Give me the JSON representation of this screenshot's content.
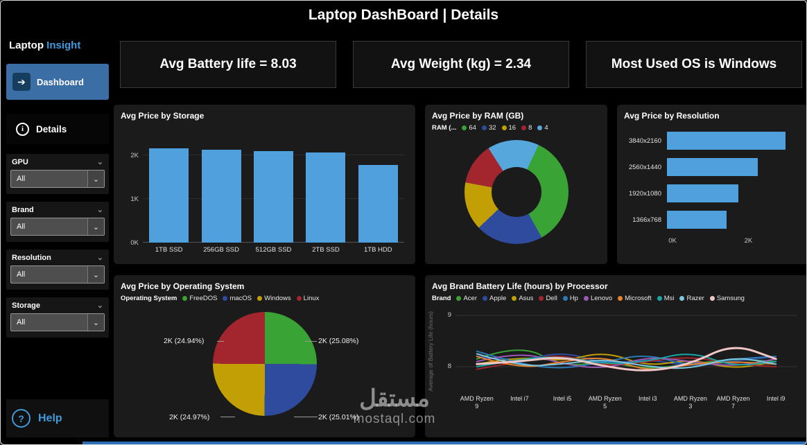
{
  "header": {
    "title": "Laptop DashBoard | Details"
  },
  "sidebar": {
    "brand_primary": "Laptop",
    "brand_accent": "Insight",
    "dashboard_label": "Dashboard",
    "details_label": "Details",
    "filters": [
      {
        "label": "GPU",
        "value": "All"
      },
      {
        "label": "Brand",
        "value": "All"
      },
      {
        "label": "Resolution",
        "value": "All"
      },
      {
        "label": "Storage",
        "value": "All"
      }
    ],
    "help_label": "Help",
    "icons": {
      "dashboard": "arrow-right-icon",
      "details": "info-icon",
      "help": "question-icon"
    }
  },
  "kpis": [
    {
      "text": "Avg Battery life = 8.03"
    },
    {
      "text": "Avg Weight (kg) = 2.34"
    },
    {
      "text": "Most Used OS is Windows"
    }
  ],
  "watermark": {
    "arabic": "مستقل",
    "domain": "mostaql.com"
  },
  "colors": {
    "accent_blue": "#3f9bdc",
    "bar_blue": "#4FA0DC",
    "dashboard_button": "#3a6ea5"
  },
  "chart_data": [
    {
      "type": "bar",
      "title": "Avg Price by Storage",
      "categories": [
        "1TB SSD",
        "256GB SSD",
        "512GB SSD",
        "2TB SSD",
        "1TB HDD"
      ],
      "values": [
        2.15,
        2.12,
        2.09,
        2.05,
        1.78
      ],
      "unit": "K",
      "ylim": [
        0,
        2.5
      ],
      "yticks": [
        {
          "v": 0,
          "label": "0K"
        },
        {
          "v": 1,
          "label": "1K"
        },
        {
          "v": 2,
          "label": "2K"
        }
      ],
      "bar_color": "#4FA0DC"
    },
    {
      "type": "donut",
      "title": "Avg Price by RAM (GB)",
      "legend_title": "RAM (...",
      "categories": [
        "64",
        "32",
        "16",
        "8",
        "4"
      ],
      "values": [
        35,
        21,
        15,
        13,
        16
      ],
      "colors": [
        "#3AA335",
        "#2E4B9E",
        "#C2A005",
        "#A3262E",
        "#56A7DC"
      ],
      "start_angle": 25,
      "note": "values are estimated visual proportions (%), no data labels shown"
    },
    {
      "type": "bar-horizontal",
      "title": "Avg Price by Resolution",
      "categories": [
        "3840x2160",
        "2560x1440",
        "1920x1080",
        "1366x768"
      ],
      "values": [
        3.0,
        2.3,
        1.8,
        1.5
      ],
      "unit": "K",
      "xlim": [
        0,
        3.4
      ],
      "xticks": [
        {
          "v": 0,
          "label": "0K"
        },
        {
          "v": 2,
          "label": "2K"
        }
      ],
      "bar_color": "#4FA0DC"
    },
    {
      "type": "pie",
      "title": "Avg Price by Operating System",
      "legend_title": "Operating System",
      "series": [
        {
          "name": "FreeDOS",
          "color": "#3AA335",
          "value": 25.08,
          "label": "2K (25.08%)",
          "pos": "pl-tr"
        },
        {
          "name": "macOS",
          "color": "#2E4B9E",
          "value": 25.01,
          "label": "2K (25.01%)",
          "pos": "pl-br"
        },
        {
          "name": "Windows",
          "color": "#C2A005",
          "value": 24.97,
          "label": "2K (24.97%)",
          "pos": "pl-bl"
        },
        {
          "name": "Linux",
          "color": "#A3262E",
          "value": 24.94,
          "label": "2K (24.94%)",
          "pos": "pl-tl"
        }
      ]
    },
    {
      "type": "line",
      "title": "Avg Brand Battery Life (hours) by Processor",
      "legend_title": "Brand",
      "ylabel": "Average of Battery Life (hours)",
      "categories": [
        "AMD Ryzen 9",
        "Intel i7",
        "Intel i5",
        "AMD Ryzen 5",
        "Intel i3",
        "AMD Ryzen 3",
        "AMD Ryzen 7",
        "Intel i9"
      ],
      "ylim": [
        7.5,
        9.15
      ],
      "yticks": [
        {
          "v": 8,
          "label": "8"
        },
        {
          "v": 9,
          "label": "9"
        }
      ],
      "series": [
        {
          "name": "Acer",
          "color": "#3AA335",
          "values": [
            8.15,
            8.45,
            8.0,
            8.1,
            7.95,
            8.05,
            8.15,
            8.1
          ]
        },
        {
          "name": "Apple",
          "color": "#2E4B9E",
          "values": [
            8.2,
            8.1,
            8.3,
            8.05,
            8.15,
            8.0,
            8.1,
            8.2
          ]
        },
        {
          "name": "Asus",
          "color": "#C2A005",
          "values": [
            8.05,
            8.2,
            8.1,
            8.3,
            8.0,
            8.15,
            7.95,
            8.1
          ]
        },
        {
          "name": "Dell",
          "color": "#A3262E",
          "values": [
            7.95,
            8.1,
            8.25,
            8.0,
            8.1,
            8.2,
            8.05,
            8.0
          ]
        },
        {
          "name": "Hp",
          "color": "#2A7AB8",
          "values": [
            8.3,
            8.05,
            7.95,
            8.1,
            8.25,
            8.0,
            8.15,
            8.2
          ]
        },
        {
          "name": "Lenovo",
          "color": "#9B59B6",
          "values": [
            8.1,
            8.3,
            8.05,
            7.95,
            8.2,
            8.1,
            8.0,
            8.15
          ]
        },
        {
          "name": "Microsoft",
          "color": "#E8842C",
          "values": [
            8.2,
            7.95,
            8.1,
            8.2,
            7.9,
            8.05,
            8.1,
            8.05
          ]
        },
        {
          "name": "Msi",
          "color": "#19A5A5",
          "values": [
            8.0,
            8.15,
            8.2,
            8.05,
            8.1,
            8.3,
            8.0,
            8.1
          ]
        },
        {
          "name": "Razer",
          "color": "#7EC8E3",
          "values": [
            8.25,
            8.0,
            8.05,
            8.15,
            8.0,
            7.95,
            8.2,
            8.05
          ]
        },
        {
          "name": "Samsung",
          "color": "#F0C6C6",
          "values": [
            8.05,
            8.1,
            8.2,
            8.0,
            7.9,
            8.05,
            8.45,
            8.15
          ],
          "w": 3
        }
      ]
    }
  ]
}
